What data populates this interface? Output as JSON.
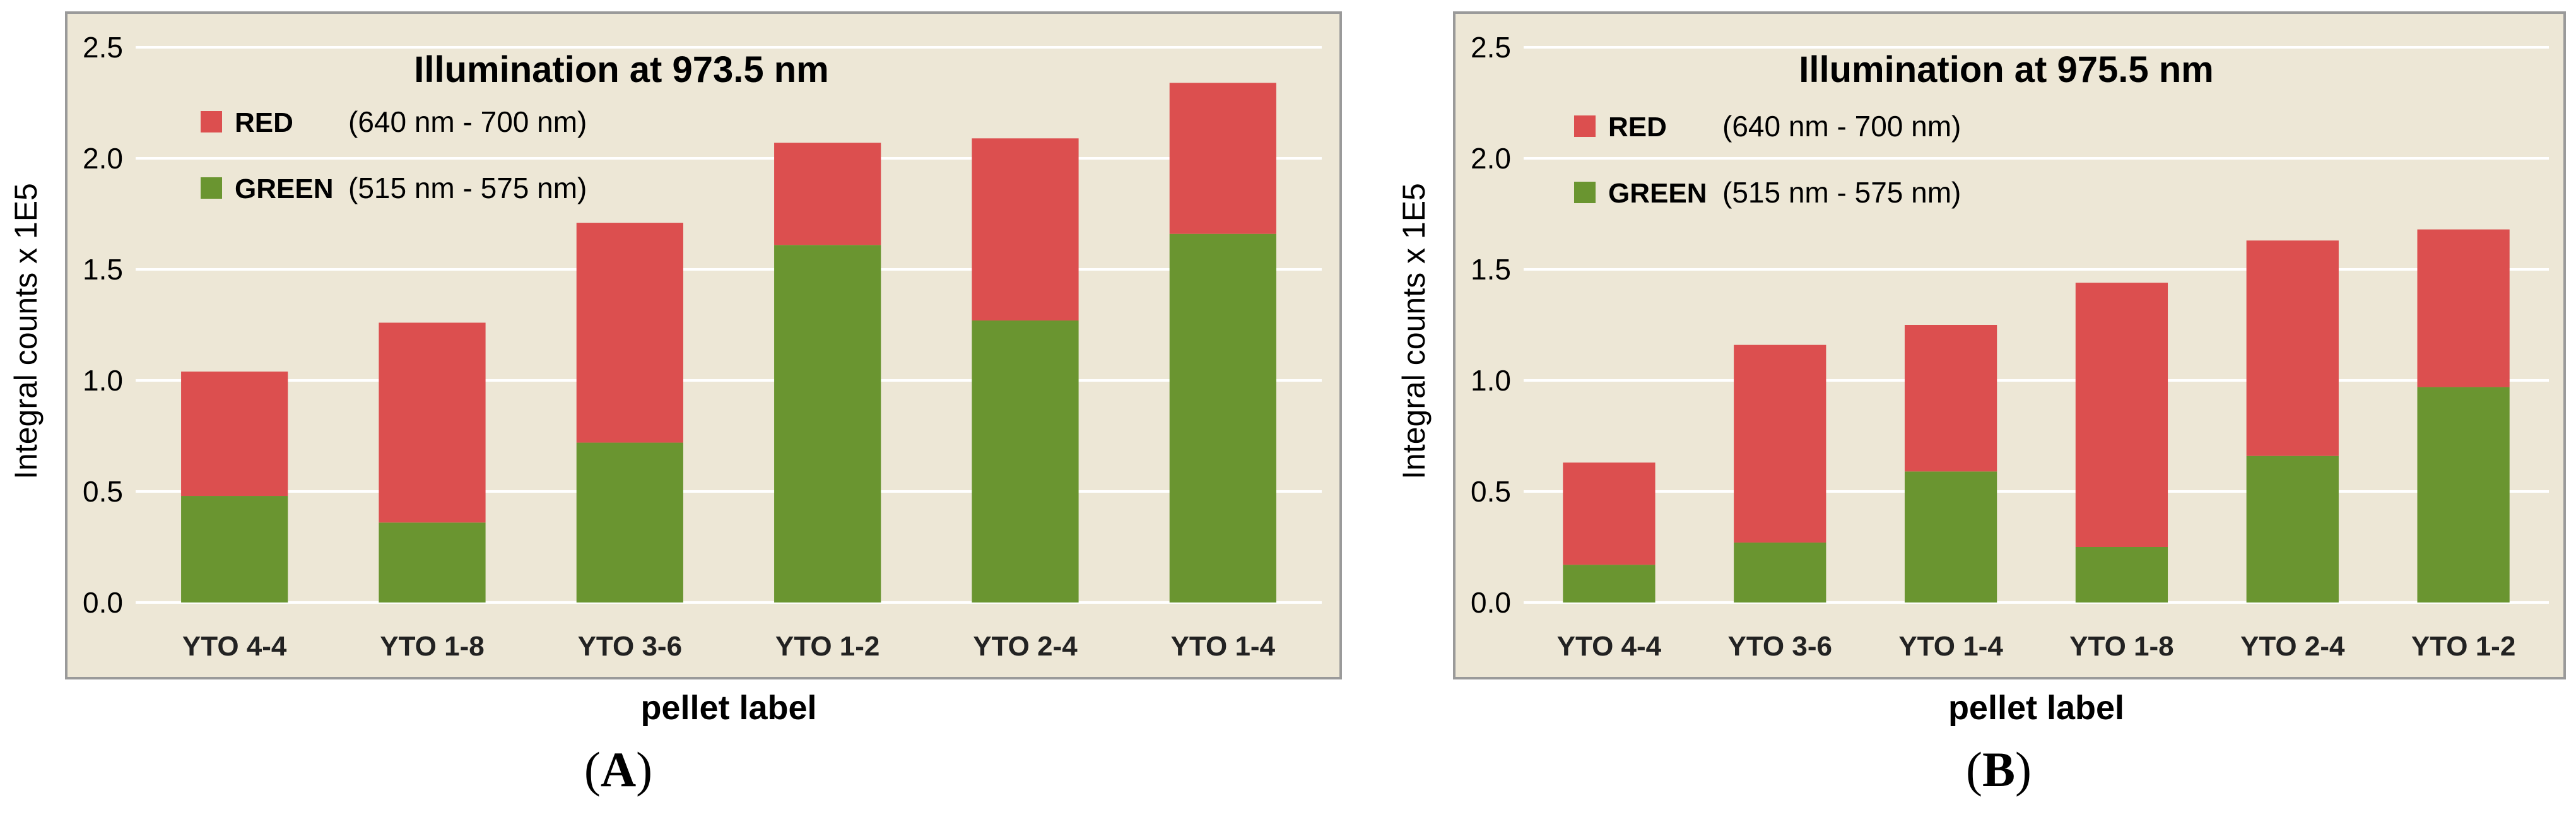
{
  "chart_data": [
    {
      "type": "bar",
      "stacked": true,
      "title": "Illumination at 973.5 nm",
      "xlabel": "pellet label",
      "ylabel": "Integral counts x 1E5",
      "ylim": [
        0,
        2.5
      ],
      "yticks": [
        "0.0",
        "0.5",
        "1.0",
        "1.5",
        "2.0",
        "2.5"
      ],
      "categories": [
        "YTO 4-4",
        "YTO 1-8",
        "YTO 3-6",
        "YTO 1-2",
        "YTO 2-4",
        "YTO 1-4"
      ],
      "series": [
        {
          "name": "GREEN",
          "range": "(515 nm - 575 nm)",
          "color": "#6a9530",
          "values": [
            0.48,
            0.36,
            0.72,
            1.61,
            1.27,
            1.66
          ]
        },
        {
          "name": "RED",
          "range": "(640 nm - 700 nm)",
          "color": "#dc4f4f",
          "values": [
            0.56,
            0.9,
            0.99,
            0.46,
            0.82,
            0.68
          ]
        }
      ],
      "legend_order": [
        "RED",
        "GREEN"
      ],
      "grid": true,
      "legend": "top-left"
    },
    {
      "type": "bar",
      "stacked": true,
      "title": "Illumination at 975.5 nm",
      "xlabel": "pellet label",
      "ylabel": "Integral counts x 1E5",
      "ylim": [
        0,
        2.5
      ],
      "yticks": [
        "0.0",
        "0.5",
        "1.0",
        "1.5",
        "2.0",
        "2.5"
      ],
      "categories": [
        "YTO 4-4",
        "YTO 3-6",
        "YTO 1-4",
        "YTO 1-8",
        "YTO 2-4",
        "YTO 1-2"
      ],
      "series": [
        {
          "name": "GREEN",
          "range": "(515 nm - 575 nm)",
          "color": "#6a9530",
          "values": [
            0.17,
            0.27,
            0.59,
            0.25,
            0.66,
            0.97
          ]
        },
        {
          "name": "RED",
          "range": "(640 nm - 700 nm)",
          "color": "#dc4f4f",
          "values": [
            0.46,
            0.89,
            0.66,
            1.19,
            0.97,
            0.71
          ]
        }
      ],
      "legend_order": [
        "RED",
        "GREEN"
      ],
      "grid": true,
      "legend": "top-left"
    }
  ],
  "captions": {
    "a": {
      "open": "(",
      "letter": "A",
      "close": ")"
    },
    "b": {
      "open": "(",
      "letter": "B",
      "close": ")"
    }
  },
  "colors": {
    "plot_bg": "#ede7d6",
    "border": "#9a9a9a",
    "gridline": "#ffffff"
  }
}
